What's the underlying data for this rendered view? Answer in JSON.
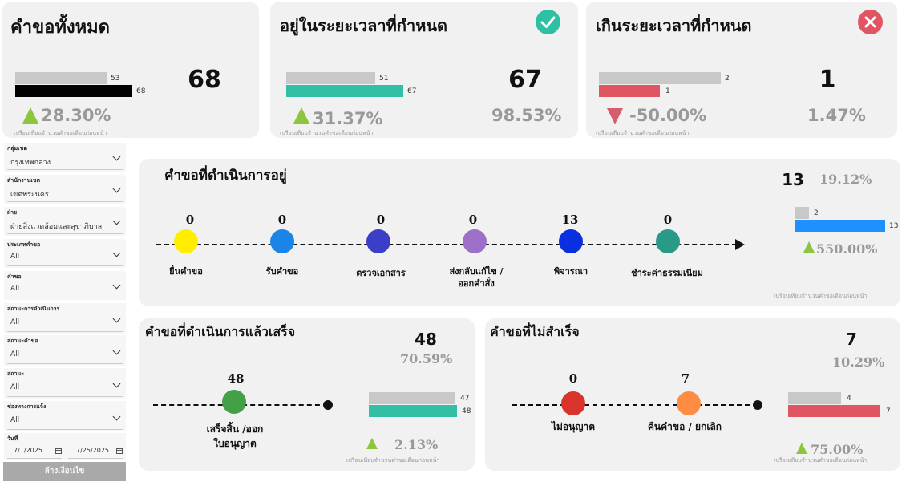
{
  "cards": {
    "total": {
      "title": "คำขอทั้งหมด",
      "value": "68",
      "bar_prev": "53",
      "bar_curr": "68",
      "prev": 53,
      "curr": 68,
      "change": "28.30%",
      "note": "เปรียบเทียบจำนวนคำขอเดือนก่อนหน้า"
    },
    "ontime": {
      "title": "อยู่ในระยะเวลาที่กำหนด",
      "value": "67",
      "percent": "98.53%",
      "bar_prev": "51",
      "bar_curr": "67",
      "prev": 51,
      "curr": 67,
      "change": "31.37%",
      "note": "เปรียบเทียบจำนวนคำขอเดือนก่อนหน้า"
    },
    "overdue": {
      "title": "เกินระยะเวลาที่กำหนด",
      "value": "1",
      "percent": "1.47%",
      "bar_prev": "2",
      "bar_curr": "1",
      "prev": 2,
      "curr": 1,
      "change": "-50.00%",
      "note": "เปรียบเทียบจำนวนคำขอเดือนก่อนหน้า"
    }
  },
  "filters": [
    {
      "label": "กลุ่มเขต",
      "value": "กรุงเทพกลาง"
    },
    {
      "label": "สำนักงานเขต",
      "value": "เขตพระนคร"
    },
    {
      "label": "ฝ่าย",
      "value": "ฝ่ายสิ่งแวดล้อมและสุขาภิบาล"
    },
    {
      "label": "ประเภทคำขอ",
      "value": "All"
    },
    {
      "label": "คำขอ",
      "value": "All"
    },
    {
      "label": "สถานะการดำเนินการ",
      "value": "All"
    },
    {
      "label": "สถานะคำขอ",
      "value": "All"
    },
    {
      "label": "สถานะ",
      "value": "All"
    },
    {
      "label": "ช่องทางการแจ้ง",
      "value": "All"
    }
  ],
  "date_filter": {
    "label": "วันที่",
    "start": "7/1/2025",
    "end": "7/25/2025"
  },
  "reset_button": "ล้างเงื่อนไข",
  "inprogress": {
    "title": "คำขอที่ดำเนินการอยู่",
    "value": "13",
    "percent": "19.12%",
    "bar_prev": "2",
    "bar_curr": "13",
    "prev": 2,
    "curr": 13,
    "change": "550.00%",
    "note": "เปรียบเทียบจำนวนคำขอเดือนก่อนหน้า",
    "stages": [
      {
        "count": "0",
        "label": "ยื่นคำขอ",
        "color": "#ffee00"
      },
      {
        "count": "0",
        "label": "รับคำขอ",
        "color": "#1a85e6"
      },
      {
        "count": "0",
        "label": "ตรวจเอกสาร",
        "color": "#3b3fc7"
      },
      {
        "count": "0",
        "label": "ส่งกลับแก้ไข /ออกคำสั่ง",
        "color": "#9c6fc9"
      },
      {
        "count": "13",
        "label": "พิจารณา",
        "color": "#0a2fe0"
      },
      {
        "count": "0",
        "label": "ชำระค่าธรรมเนียม",
        "color": "#2a9a88"
      }
    ]
  },
  "completed": {
    "title": "คำขอที่ดำเนินการแล้วเสร็จ",
    "value": "48",
    "percent": "70.59%",
    "stage_count": "48",
    "stage_label": "เสร็จสิ้น /ออกใบอนุญาต",
    "bar_prev": "47",
    "bar_curr": "48",
    "prev": 47,
    "curr": 48,
    "change": "2.13%",
    "note": "เปรียบเทียบจำนวนคำขอเดือนก่อนหน้า"
  },
  "failed": {
    "title": "คำขอที่ไม่สำเร็จ",
    "value": "7",
    "percent": "10.29%",
    "stages": [
      {
        "count": "0",
        "label": "ไม่อนุญาต",
        "color": "#d9342b"
      },
      {
        "count": "7",
        "label": "คืนคำขอ / ยกเลิก",
        "color": "#ff8c42"
      }
    ],
    "bar_prev": "4",
    "bar_curr": "7",
    "prev": 4,
    "curr": 7,
    "change": "75.00%",
    "note": "เปรียบเทียบจำนวนคำขอเดือนก่อนหน้า"
  },
  "colors": {
    "prev_bar": "#c8c8c8",
    "total_bar": "#000000",
    "teal_bar": "#33bfa6",
    "red_bar": "#e05562",
    "blue_bar": "#1e90ff",
    "up": "#8cc63f",
    "down": "#d45d6e"
  }
}
